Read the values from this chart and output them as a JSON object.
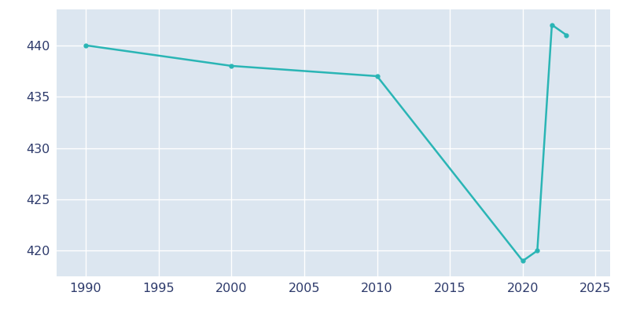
{
  "years": [
    1990,
    2000,
    2010,
    2020,
    2021,
    2022,
    2023
  ],
  "population": [
    440,
    438,
    437,
    419,
    420,
    442,
    441
  ],
  "line_color": "#2ab5b5",
  "marker_style": "o",
  "marker_size": 3.5,
  "line_width": 1.8,
  "plot_bg_color": "#dce6f0",
  "fig_bg_color": "#ffffff",
  "grid_color": "#ffffff",
  "xlim": [
    1988,
    2026
  ],
  "ylim": [
    417.5,
    443.5
  ],
  "xticks": [
    1990,
    1995,
    2000,
    2005,
    2010,
    2015,
    2020,
    2025
  ],
  "yticks": [
    420,
    425,
    430,
    435,
    440
  ],
  "tick_color": "#2d3a6b",
  "tick_fontsize": 11.5
}
